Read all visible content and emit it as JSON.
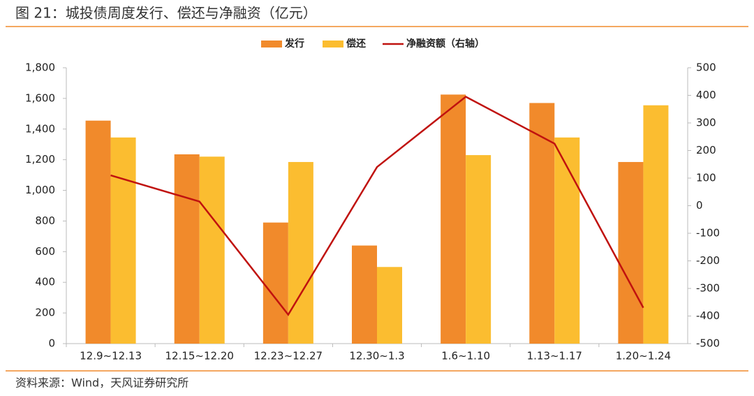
{
  "chart_data": {
    "type": "bar",
    "title": "图 21：城投债周度发行、偿还与净融资（亿元）",
    "source": "资料来源：Wind，天风证券研究所",
    "categories": [
      "12.9~12.13",
      "12.15~12.20",
      "12.23~12.27",
      "12.30~1.3",
      "1.6~1.10",
      "1.13~1.17",
      "1.20~1.24"
    ],
    "series": [
      {
        "name": "发行",
        "color": "#f18a2b",
        "type": "bar",
        "values": [
          1455,
          1235,
          790,
          640,
          1625,
          1570,
          1185
        ]
      },
      {
        "name": "偿还",
        "color": "#fbbd30",
        "type": "bar",
        "values": [
          1345,
          1220,
          1185,
          500,
          1230,
          1345,
          1555
        ]
      },
      {
        "name": "净融资额（右轴）",
        "color": "#c0120f",
        "type": "line",
        "axis": "y2",
        "values": [
          110,
          15,
          -395,
          140,
          395,
          225,
          -370
        ]
      }
    ],
    "ylim": [
      0,
      1800
    ],
    "yticks": [
      0,
      200,
      400,
      600,
      800,
      {
        "value": 1000,
        "label": "1,000"
      },
      {
        "value": 1200,
        "label": "1,200"
      },
      {
        "value": 1400,
        "label": "1,400"
      },
      {
        "value": 1600,
        "label": "1,600"
      },
      {
        "value": 1800,
        "label": "1,800"
      }
    ],
    "y2lim": [
      -500,
      500
    ],
    "y2ticks": [
      -500,
      -400,
      -300,
      -200,
      -100,
      0,
      100,
      200,
      300,
      400,
      500
    ]
  }
}
